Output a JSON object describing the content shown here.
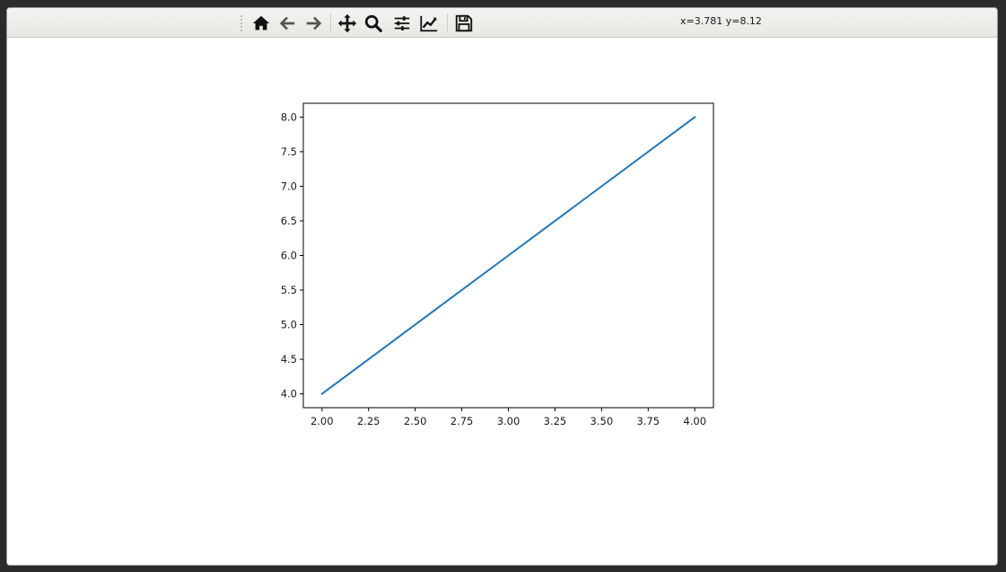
{
  "toolbar": {
    "buttons": [
      {
        "name": "home-icon",
        "label": "Home"
      },
      {
        "name": "back-icon",
        "label": "Back"
      },
      {
        "name": "forward-icon",
        "label": "Forward"
      },
      {
        "name": "pan-icon",
        "label": "Pan"
      },
      {
        "name": "zoom-icon",
        "label": "Zoom"
      },
      {
        "name": "subplots-icon",
        "label": "Configure subplots"
      },
      {
        "name": "edit-axis-icon",
        "label": "Edit axis"
      },
      {
        "name": "save-icon",
        "label": "Save"
      }
    ],
    "coordinates": "x=3.781 y=8.12"
  },
  "chart_data": {
    "type": "line",
    "title": "",
    "xlabel": "",
    "ylabel": "",
    "xlim": [
      1.9,
      4.1
    ],
    "ylim": [
      3.8,
      8.2
    ],
    "xticks": [
      2.0,
      2.25,
      2.5,
      2.75,
      3.0,
      3.25,
      3.5,
      3.75,
      4.0
    ],
    "xtick_labels": [
      "2.00",
      "2.25",
      "2.50",
      "2.75",
      "3.00",
      "3.25",
      "3.50",
      "3.75",
      "4.00"
    ],
    "yticks": [
      4.0,
      4.5,
      5.0,
      5.5,
      6.0,
      6.5,
      7.0,
      7.5,
      8.0
    ],
    "ytick_labels": [
      "4.0",
      "4.5",
      "5.0",
      "5.5",
      "6.0",
      "6.5",
      "7.0",
      "7.5",
      "8.0"
    ],
    "grid": false,
    "series": [
      {
        "x": [
          2,
          3,
          4
        ],
        "y": [
          4,
          6,
          8
        ],
        "color": "#1f77b4"
      }
    ]
  }
}
